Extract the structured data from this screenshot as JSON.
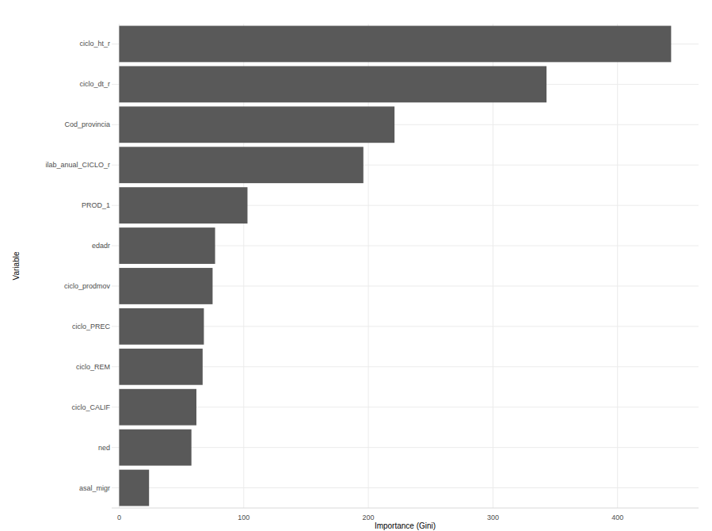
{
  "chart_data": {
    "type": "bar",
    "orientation": "horizontal",
    "x_label": "Importance (Gini)",
    "y_label": "Variable",
    "categories": [
      "ciclo_ht_r",
      "ciclo_dt_r",
      "Cod_provincia",
      "ilab_anual_CICLO_r",
      "PROD_1",
      "edadr",
      "ciclo_prodmov",
      "ciclo_PREC",
      "ciclo_REM",
      "ciclo_CALIF",
      "ned",
      "asal_migr"
    ],
    "values": [
      443,
      343,
      221,
      196,
      103,
      77,
      75,
      68,
      67,
      62,
      58,
      24
    ],
    "color": "#595959",
    "xlim": [
      -6,
      465
    ],
    "xticks": [
      0,
      100,
      200,
      300,
      400
    ],
    "grid": true
  }
}
